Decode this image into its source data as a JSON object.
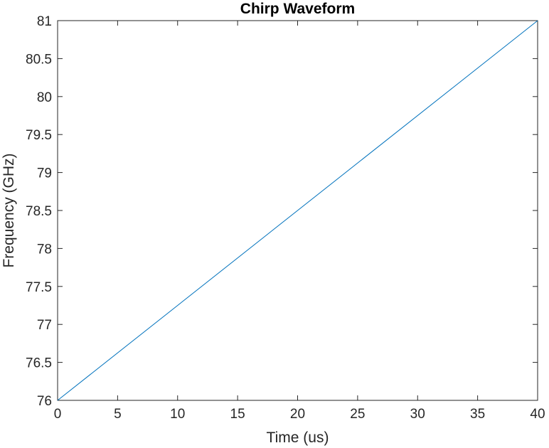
{
  "chart_data": {
    "type": "line",
    "title": "Chirp Waveform",
    "xlabel": "Time (us)",
    "ylabel": "Frequency (GHz)",
    "xlim": [
      0,
      40
    ],
    "ylim": [
      76,
      81
    ],
    "x_ticks": [
      0,
      5,
      10,
      15,
      20,
      25,
      30,
      35,
      40
    ],
    "y_ticks": [
      76,
      76.5,
      77,
      77.5,
      78,
      78.5,
      79,
      79.5,
      80,
      80.5,
      81
    ],
    "x_tick_labels": [
      "0",
      "5",
      "10",
      "15",
      "20",
      "25",
      "30",
      "35",
      "40"
    ],
    "y_tick_labels": [
      "76",
      "76.5",
      "77",
      "77.5",
      "78",
      "78.5",
      "79",
      "79.5",
      "80",
      "80.5",
      "81"
    ],
    "grid": false,
    "box": true,
    "series": [
      {
        "name": "chirp",
        "color": "#0072BD",
        "x": [
          0,
          40
        ],
        "y": [
          76,
          81
        ]
      }
    ]
  }
}
